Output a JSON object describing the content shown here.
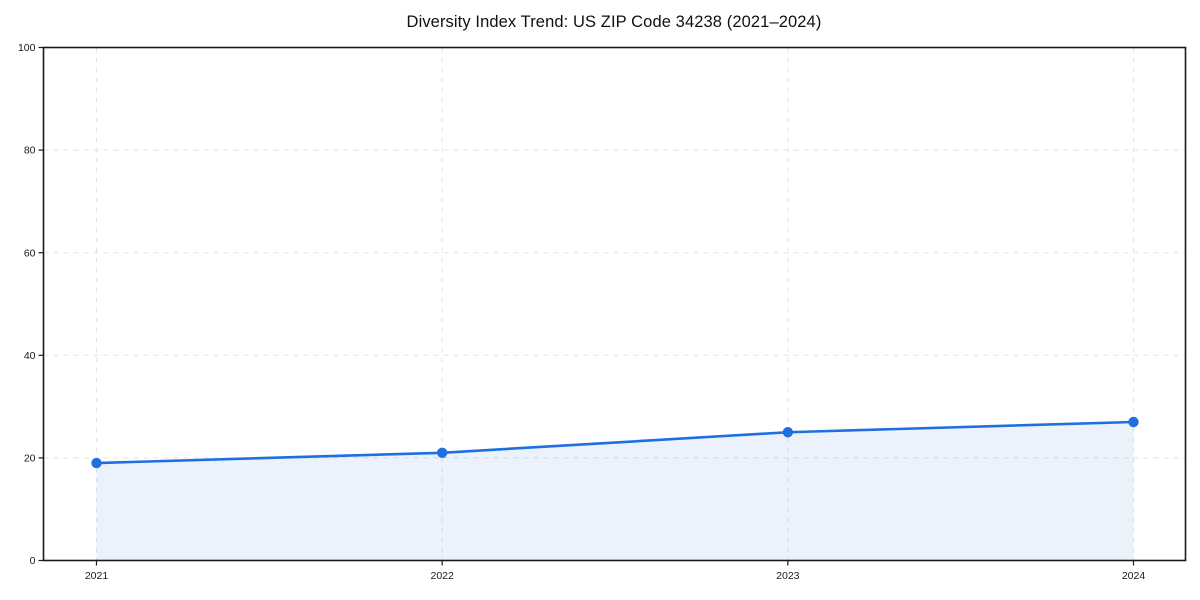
{
  "chart_data": {
    "type": "area",
    "title": "Diversity Index Trend: US ZIP Code 34238 (2021–2024)",
    "x": [
      "2021",
      "2022",
      "2023",
      "2024"
    ],
    "series": [
      {
        "name": "Diversity Index",
        "values": [
          19,
          21,
          25,
          27
        ]
      }
    ],
    "xlabel": "",
    "ylabel": "",
    "ylim": [
      0,
      100
    ],
    "yticks": [
      0,
      20,
      40,
      60,
      80,
      100
    ],
    "grid": "dashed-both-axes",
    "legend": "none",
    "marker": "circle",
    "colors": {
      "line": "#1f6fe0",
      "marker": "#1f6fe0",
      "fill": "#1f6fe0",
      "fill_opacity": "0.09",
      "grid": "#e4e4e4",
      "frame": "#1a1a1a",
      "text": "#1a1a1a",
      "background": "#ffffff"
    }
  }
}
